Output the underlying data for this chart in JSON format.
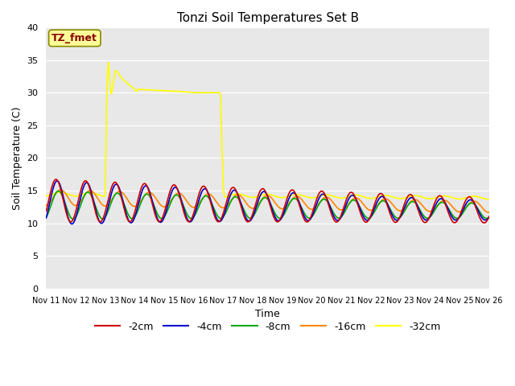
{
  "title": "Tonzi Soil Temperatures Set B",
  "xlabel": "Time",
  "ylabel": "Soil Temperature (C)",
  "ylim": [
    0,
    40
  ],
  "yticks": [
    0,
    5,
    10,
    15,
    20,
    25,
    30,
    35,
    40
  ],
  "xtick_labels": [
    "Nov 11",
    "Nov 12",
    "Nov 13",
    "Nov 14",
    "Nov 15",
    "Nov 16",
    "Nov 17",
    "Nov 18",
    "Nov 19",
    "Nov 20",
    "Nov 21",
    "Nov 22",
    "Nov 23",
    "Nov 24",
    "Nov 25",
    "Nov 26"
  ],
  "bg_color": "#e8e8e8",
  "fig_color": "#ffffff",
  "series_colors": {
    "-2cm": "#cc0000",
    "-4cm": "#0000cc",
    "-8cm": "#00aa00",
    "-16cm": "#ff8800",
    "-32cm": "#ffff00"
  },
  "legend_label": "TZ_fmet",
  "legend_box_facecolor": "#ffff99",
  "legend_box_edgecolor": "#888800",
  "legend_text_color": "#880000"
}
